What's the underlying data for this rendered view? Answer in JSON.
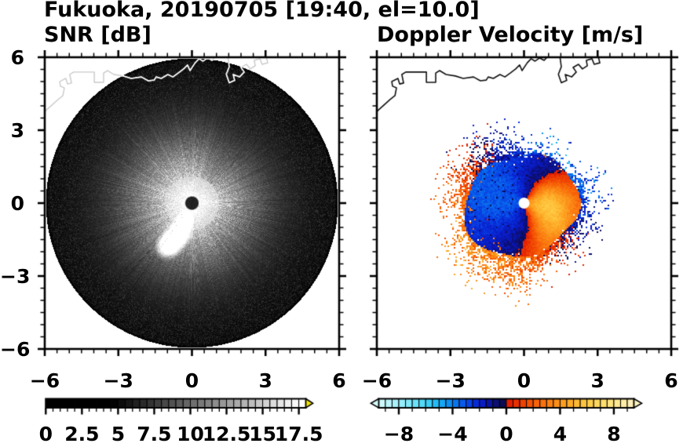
{
  "title": "Fukuoka, 20190705 [19:40, el=10.0]",
  "chart_data": {
    "type": "heatmap",
    "description": "Dual-panel Doppler weather radar PPI display for Fukuoka, 2019-07-05 19:40, elevation 10.0 deg. Left: SNR [dB] grayscale disc. Right: Doppler velocity [m/s] blue/red field with coastline overlay.",
    "x_range": [
      -6,
      6
    ],
    "y_range": [
      -6,
      6
    ],
    "panels": [
      {
        "title": "SNR [dB]",
        "xtick_values": [
          -6,
          -3,
          0,
          3,
          6
        ],
        "xtick_labels": [
          "−6",
          "−3",
          "0",
          "3",
          "6"
        ],
        "ytick_values": [
          6,
          3,
          0,
          -3,
          -6
        ],
        "ytick_labels": [
          "6",
          "3",
          "0",
          "−3",
          "−6"
        ],
        "minor_tick_step": 0.5,
        "field": {
          "kind": "radar-ppi-snr",
          "disc_radius": 5.93,
          "center_hole_radius": 0.25,
          "pattern": "bright white glow with radial streaks around center decaying outward; bright lobe SW of center; dark speckle noise out to disc edge",
          "bright_lobes": [
            [
              -0.5,
              -1.2
            ],
            [
              -1.0,
              -1.8
            ],
            [
              -0.2,
              -0.55
            ]
          ]
        },
        "colorbar": {
          "min": 0,
          "max": 17.5,
          "segment_step": 0.5,
          "tick_values": [
            0,
            2.5,
            5,
            7.5,
            10,
            12.5,
            15,
            17.5
          ],
          "tick_labels": [
            "0",
            "2.5",
            "5",
            "7.5",
            "10",
            "12.5",
            "15",
            "17.5"
          ],
          "minor_tick_step": 0.5,
          "over_arrow_color": "#f2e400"
        }
      },
      {
        "title": "Doppler Velocity [m/s]",
        "xtick_values": [
          -6,
          -3,
          0,
          3,
          6
        ],
        "xtick_labels": [
          "−6",
          "−3",
          "0",
          "3",
          "6"
        ],
        "ytick_values": [
          6,
          3,
          0,
          -3,
          -6
        ],
        "minor_tick_step": 0.5,
        "field": {
          "kind": "radar-ppi-velocity",
          "echo_radius": 2.7,
          "pattern": "blue (negative) N-NW-W-SW, orange-red (positive) crescent E-SE of center; aliased speckle ring red on W/S, blue on E; white dot at radar site",
          "center_dot_radius_px": 7
        },
        "colorbar": {
          "min": -9.5,
          "max": 9.5,
          "segment_step": 0.5,
          "tick_values": [
            -8,
            -4,
            0,
            4,
            8
          ],
          "tick_labels": [
            "−8",
            "−4",
            "0",
            "4",
            "8"
          ],
          "minor_tick_step": 1,
          "under_arrow_color": "#d7fcff",
          "over_arrow_color": "#fff3c2",
          "stops": [
            [
              -9.5,
              215,
              252,
              255
            ],
            [
              -8,
              160,
              240,
              252
            ],
            [
              -7,
              118,
              230,
              250
            ],
            [
              -6,
              70,
              214,
              248
            ],
            [
              -5,
              26,
              180,
              246
            ],
            [
              -4,
              12,
              130,
              240
            ],
            [
              -3,
              8,
              78,
              232
            ],
            [
              -2.2,
              8,
              40,
              214
            ],
            [
              -1.5,
              10,
              24,
              186
            ],
            [
              -1,
              11,
              17,
              136
            ],
            [
              -0.5,
              12,
              13,
              92
            ],
            [
              0,
              13,
              12,
              68
            ],
            [
              0.001,
              222,
              24,
              2
            ],
            [
              1,
              236,
              58,
              2
            ],
            [
              2,
              246,
              92,
              6
            ],
            [
              3,
              250,
              122,
              16
            ],
            [
              4,
              252,
              150,
              28
            ],
            [
              5,
              254,
              178,
              44
            ],
            [
              6,
              255,
              202,
              68
            ],
            [
              7,
              255,
              218,
              100
            ],
            [
              8,
              255,
              230,
              136
            ],
            [
              9.5,
              255,
              243,
              195
            ]
          ]
        }
      }
    ],
    "coastline": [
      [
        [
          -6,
          3.77
        ],
        [
          -5.46,
          4.26
        ],
        [
          -5.26,
          4.42
        ],
        [
          -5.2,
          4.74
        ],
        [
          -5.36,
          4.81
        ],
        [
          -5.39,
          5.0
        ],
        [
          -5.14,
          5.13
        ],
        [
          -5.07,
          4.9
        ],
        [
          -4.91,
          4.94
        ],
        [
          -4.98,
          5.29
        ],
        [
          -4.82,
          5.39
        ],
        [
          -3.98,
          5.39
        ],
        [
          -3.98,
          4.97
        ],
        [
          -3.6,
          4.97
        ],
        [
          -3.6,
          5.35
        ],
        [
          -3.44,
          5.45
        ],
        [
          -3.18,
          5.29
        ],
        [
          -2.8,
          5.23
        ],
        [
          -2.48,
          5.13
        ],
        [
          -2.06,
          5.19
        ],
        [
          -1.78,
          5.03
        ],
        [
          -1.54,
          5.06
        ],
        [
          -1.46,
          5.19
        ],
        [
          -1.25,
          5.13
        ],
        [
          -0.98,
          5.29
        ],
        [
          -0.78,
          5.19
        ],
        [
          -0.56,
          5.35
        ],
        [
          -0.34,
          5.52
        ],
        [
          -0.18,
          5.68
        ],
        [
          -0.08,
          5.45
        ],
        [
          0.13,
          5.77
        ],
        [
          0.29,
          5.94
        ],
        [
          0.45,
          5.84
        ],
        [
          0.64,
          5.97
        ],
        [
          0.82,
          5.87
        ],
        [
          0.98,
          6.05
        ]
      ],
      [
        [
          1.46,
          6.05
        ],
        [
          1.52,
          5.61
        ],
        [
          1.4,
          5.3
        ],
        [
          1.52,
          4.95
        ],
        [
          1.74,
          5.05
        ],
        [
          1.68,
          5.29
        ],
        [
          1.94,
          5.19
        ],
        [
          2.13,
          5.39
        ],
        [
          2.0,
          5.58
        ],
        [
          2.22,
          5.71
        ],
        [
          2.38,
          5.52
        ],
        [
          2.58,
          5.65
        ],
        [
          2.54,
          5.87
        ],
        [
          2.77,
          5.94
        ],
        [
          2.86,
          5.71
        ],
        [
          3.09,
          5.77
        ],
        [
          3.02,
          6.05
        ]
      ]
    ]
  }
}
